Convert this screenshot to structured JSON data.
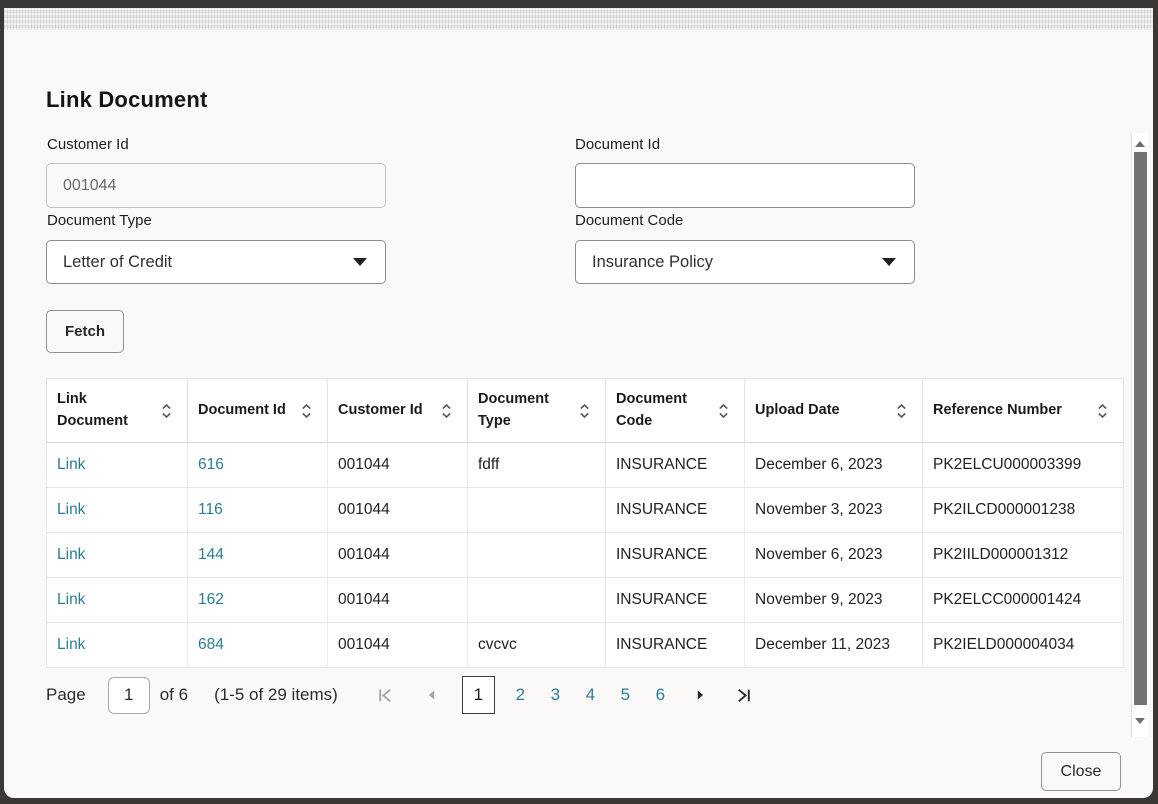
{
  "modal": {
    "title": "Link Document",
    "fields": {
      "customer_id": {
        "label": "Customer Id",
        "value": "001044"
      },
      "document_id": {
        "label": "Document Id",
        "value": ""
      },
      "document_type": {
        "label": "Document Type",
        "value": "Letter of Credit"
      },
      "document_code": {
        "label": "Document Code",
        "value": "Insurance Policy"
      }
    },
    "fetch_label": "Fetch",
    "close_label": "Close"
  },
  "table": {
    "columns": [
      "Link Document",
      "Document Id",
      "Customer Id",
      "Document Type",
      "Document Code",
      "Upload Date",
      "Reference Number"
    ],
    "rows": [
      {
        "link": "Link",
        "document_id": "616",
        "customer_id": "001044",
        "document_type": "fdff",
        "document_code": "INSURANCE",
        "upload_date": "December 6, 2023",
        "reference_number": "PK2ELCU000003399"
      },
      {
        "link": "Link",
        "document_id": "116",
        "customer_id": "001044",
        "document_type": "",
        "document_code": "INSURANCE",
        "upload_date": "November 3, 2023",
        "reference_number": "PK2ILCD000001238"
      },
      {
        "link": "Link",
        "document_id": "144",
        "customer_id": "001044",
        "document_type": "",
        "document_code": "INSURANCE",
        "upload_date": "November 6, 2023",
        "reference_number": "PK2IILD000001312"
      },
      {
        "link": "Link",
        "document_id": "162",
        "customer_id": "001044",
        "document_type": "",
        "document_code": "INSURANCE",
        "upload_date": "November 9, 2023",
        "reference_number": "PK2ELCC000001424"
      },
      {
        "link": "Link",
        "document_id": "684",
        "customer_id": "001044",
        "document_type": "cvcvc",
        "document_code": "INSURANCE",
        "upload_date": "December 11, 2023",
        "reference_number": "PK2IELD000004034"
      }
    ]
  },
  "pagination": {
    "page_label": "Page",
    "current_page": "1",
    "of_label": "of 6",
    "items_summary": "(1-5 of 29 items)",
    "pages": [
      "1",
      "2",
      "3",
      "4",
      "5",
      "6"
    ]
  },
  "icons": {
    "sort": "up-down-chevrons",
    "first_page": "bar-left-chevron",
    "previous_page": "left-triangle",
    "next_page": "right-triangle",
    "last_page": "right-chevron-bar",
    "dropdown": "down-triangle",
    "scroll_up": "up-triangle",
    "scroll_down": "down-triangle"
  },
  "colors": {
    "link": "#2b7d92",
    "text": "#211f1c",
    "muted_text": "#6d6a66",
    "frame": "#3a3734",
    "modal_bg": "#faf9f7",
    "disabled_icon": "#a7a4a0",
    "active_icon": "#2b2926"
  }
}
